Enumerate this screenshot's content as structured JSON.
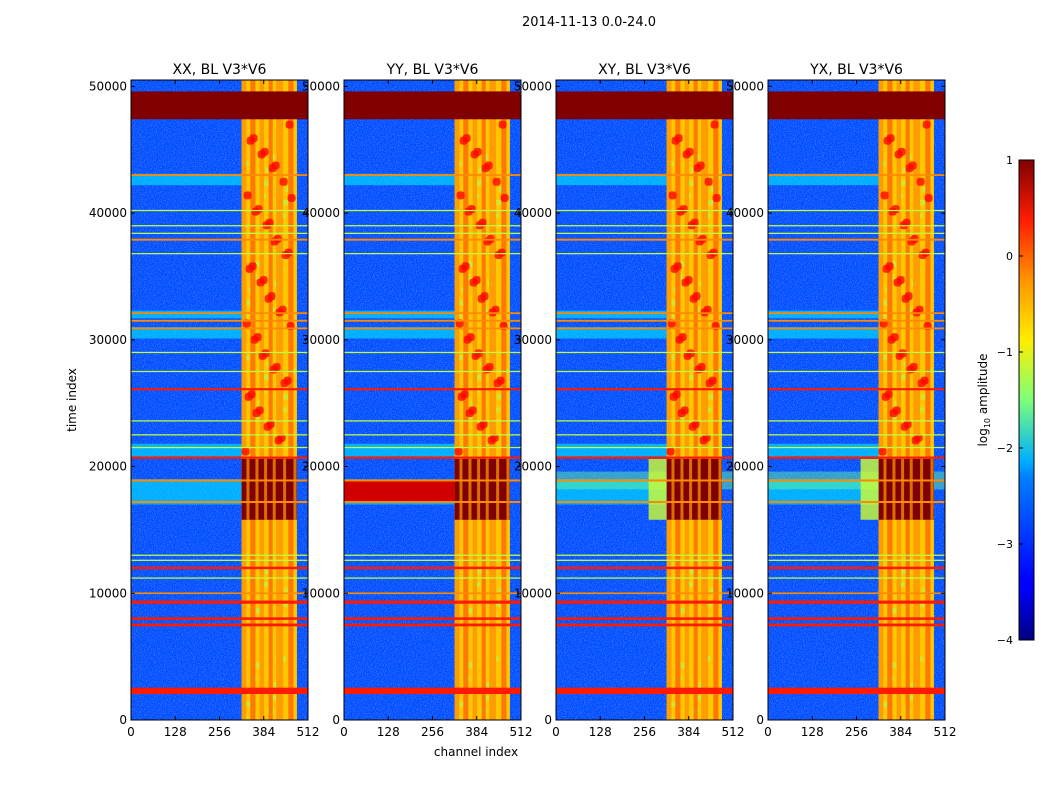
{
  "figure": {
    "suptitle": "2014-11-13 0.0-24.0"
  },
  "chart_data": {
    "type": "heatmap",
    "colormap": "jet",
    "xlabel": "channel index",
    "ylabel": "time index",
    "xlim": [
      0,
      512
    ],
    "ylim": [
      0,
      50500
    ],
    "xticks": [
      0,
      128,
      256,
      384,
      512
    ],
    "yticks": [
      0,
      10000,
      20000,
      30000,
      40000,
      50000
    ],
    "xtick_labels": [
      "0",
      "128",
      "256",
      "384",
      "512"
    ],
    "ytick_labels": [
      "0",
      "10000",
      "20000",
      "30000",
      "40000",
      "50000"
    ],
    "colorbar": {
      "label": "log",
      "label_sub": "10",
      "label_rest": " amplitude",
      "range": [
        -4,
        1
      ],
      "ticks": [
        1,
        0,
        -1,
        -2,
        -3,
        -4
      ],
      "tick_labels": [
        "1",
        "0",
        "−1",
        "−2",
        "−3",
        "−4"
      ]
    },
    "panels": [
      {
        "title": "XX, BL V3*V6",
        "background_log_amp": -3.0,
        "strong_band_log_amp": 1.0,
        "central_block_extends_low_channels": false,
        "central_block_fringe": "none"
      },
      {
        "title": "YY, BL V3*V6",
        "background_log_amp": -3.0,
        "strong_band_log_amp": 1.0,
        "central_block_extends_low_channels": true,
        "central_block_fringe": "none"
      },
      {
        "title": "XY, BL V3*V6",
        "background_log_amp": -3.0,
        "strong_band_log_amp": 1.0,
        "central_block_extends_low_channels": false,
        "central_block_fringe": "cyan-green"
      },
      {
        "title": "YX, BL V3*V6",
        "background_log_amp": -3.0,
        "strong_band_log_amp": 1.0,
        "central_block_extends_low_channels": false,
        "central_block_fringe": "cyan-green"
      }
    ],
    "saturated_time_block": {
      "from": 47400,
      "to": 49600,
      "log_amp": 1.0
    },
    "central_time_block": {
      "from": 15800,
      "to": 20600,
      "log_amp": 1.0
    },
    "bright_channel_band": {
      "from": 320,
      "to": 480
    },
    "bright_channel_columns": [
      {
        "from": 320,
        "to": 334
      },
      {
        "from": 345,
        "to": 360
      },
      {
        "from": 372,
        "to": 385
      },
      {
        "from": 398,
        "to": 410
      },
      {
        "from": 420,
        "to": 440
      },
      {
        "from": 455,
        "to": 470
      }
    ],
    "rfi_time_lines": [
      {
        "t": 2300,
        "w": 500,
        "strength": "strong"
      },
      {
        "t": 7500,
        "w": 220,
        "strength": "strong"
      },
      {
        "t": 8000,
        "w": 200,
        "strength": "strong"
      },
      {
        "t": 9300,
        "w": 250,
        "strength": "strong"
      },
      {
        "t": 10000,
        "w": 130,
        "strength": "medium"
      },
      {
        "t": 11200,
        "w": 100,
        "strength": "weak"
      },
      {
        "t": 12000,
        "w": 200,
        "strength": "strong"
      },
      {
        "t": 12600,
        "w": 100,
        "strength": "weak"
      },
      {
        "t": 13000,
        "w": 100,
        "strength": "weak"
      },
      {
        "t": 17200,
        "w": 160,
        "strength": "medium"
      },
      {
        "t": 18900,
        "w": 160,
        "strength": "medium"
      },
      {
        "t": 20700,
        "w": 180,
        "strength": "strong"
      },
      {
        "t": 21500,
        "w": 100,
        "strength": "weak"
      },
      {
        "t": 22500,
        "w": 100,
        "strength": "weak"
      },
      {
        "t": 23600,
        "w": 100,
        "strength": "weak"
      },
      {
        "t": 26100,
        "w": 170,
        "strength": "strong"
      },
      {
        "t": 27500,
        "w": 100,
        "strength": "weak"
      },
      {
        "t": 29000,
        "w": 100,
        "strength": "weak"
      },
      {
        "t": 30900,
        "w": 140,
        "strength": "medium"
      },
      {
        "t": 31500,
        "w": 140,
        "strength": "medium"
      },
      {
        "t": 32100,
        "w": 140,
        "strength": "medium"
      },
      {
        "t": 36800,
        "w": 100,
        "strength": "weak"
      },
      {
        "t": 37900,
        "w": 150,
        "strength": "medium"
      },
      {
        "t": 38400,
        "w": 100,
        "strength": "weak"
      },
      {
        "t": 39000,
        "w": 100,
        "strength": "weak"
      },
      {
        "t": 40200,
        "w": 100,
        "strength": "weak"
      },
      {
        "t": 43000,
        "w": 140,
        "strength": "medium"
      }
    ],
    "faint_cyan_bands": [
      {
        "from": 42200,
        "to": 43100
      },
      {
        "from": 31700,
        "to": 32300
      },
      {
        "from": 30100,
        "to": 31000
      },
      {
        "from": 20800,
        "to": 21800
      },
      {
        "from": 17000,
        "to": 19000
      }
    ]
  }
}
